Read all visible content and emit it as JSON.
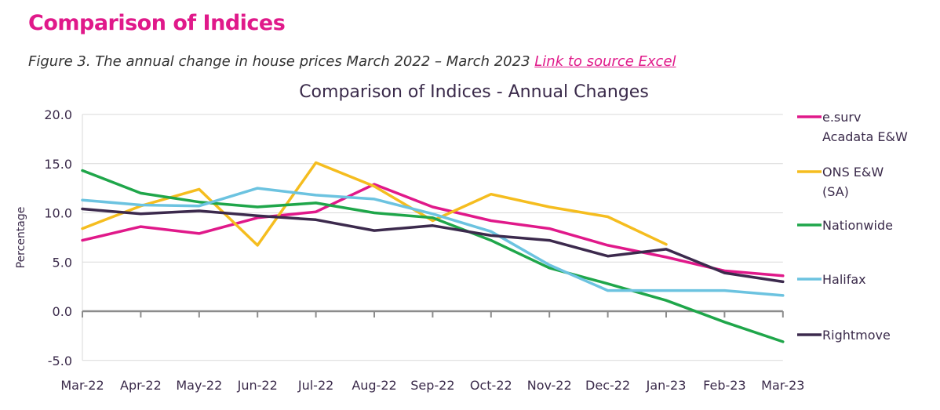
{
  "page": {
    "title": "Comparison of Indices",
    "caption": "Figure 3. The annual change in house prices March 2022 – March 2023 ",
    "link_label": "Link to source Excel"
  },
  "chart_data": {
    "type": "line",
    "title": "Comparison of Indices - Annual Changes",
    "xlabel": "",
    "ylabel": "Percentage",
    "ylim": [
      -5,
      20
    ],
    "yticks": [
      "20.0",
      "15.0",
      "10.0",
      "5.0",
      "0.0",
      "-5.0"
    ],
    "ytick_values": [
      20,
      15,
      10,
      5,
      0,
      -5
    ],
    "grid": true,
    "legend_position": "right",
    "categories": [
      "Mar-22",
      "Apr-22",
      "May-22",
      "Jun-22",
      "Jul-22",
      "Aug-22",
      "Sep-22",
      "Oct-22",
      "Nov-22",
      "Dec-22",
      "Jan-23",
      "Feb-23",
      "Mar-23"
    ],
    "series": [
      {
        "name": "e.surv Acadata E&W",
        "legend_lines": [
          "e.surv",
          "Acadata E&W"
        ],
        "color": "#e0198a",
        "values": [
          7.2,
          8.6,
          7.9,
          9.5,
          10.1,
          12.9,
          10.6,
          9.2,
          8.4,
          6.7,
          5.5,
          4.1,
          3.6
        ]
      },
      {
        "name": "ONS E&W (SA)",
        "legend_lines": [
          "ONS E&W",
          "(SA)"
        ],
        "color": "#f5bd1f",
        "values": [
          8.4,
          10.7,
          12.4,
          6.7,
          15.1,
          12.7,
          9.2,
          11.9,
          10.6,
          9.6,
          6.8,
          null,
          null
        ]
      },
      {
        "name": "Nationwide",
        "legend_lines": [
          "Nationwide"
        ],
        "color": "#1fa64a",
        "values": [
          14.3,
          12.0,
          11.1,
          10.6,
          11.0,
          10.0,
          9.5,
          7.2,
          4.4,
          2.8,
          1.1,
          -1.1,
          -3.1
        ]
      },
      {
        "name": "Halifax",
        "legend_lines": [
          "Halifax"
        ],
        "color": "#6cc3e0",
        "values": [
          11.3,
          10.8,
          10.7,
          12.5,
          11.8,
          11.4,
          9.9,
          8.1,
          4.7,
          2.1,
          2.1,
          2.1,
          1.6
        ]
      },
      {
        "name": "Rightmove",
        "legend_lines": [
          "Rightmove"
        ],
        "color": "#3c2a4d",
        "values": [
          10.4,
          9.9,
          10.2,
          9.7,
          9.3,
          8.2,
          8.7,
          7.7,
          7.2,
          5.6,
          6.3,
          3.9,
          3.0
        ]
      }
    ]
  }
}
